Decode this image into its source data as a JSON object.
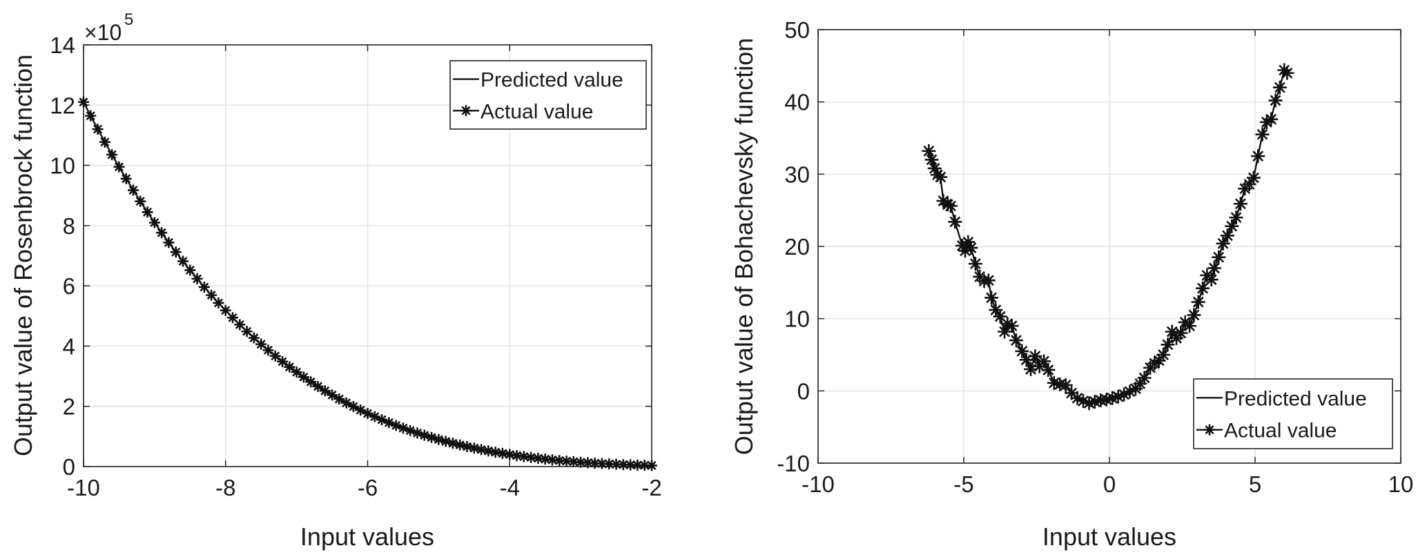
{
  "chart_data": [
    {
      "type": "line",
      "title": "",
      "xlabel": "Input values",
      "ylabel": "Output value of Rosenbrock function",
      "y_multiplier_label": {
        "base": "×10",
        "exponent": "5"
      },
      "xlim": [
        -10,
        -2
      ],
      "ylim": [
        0,
        14
      ],
      "y_units": "x 10^5",
      "xticks": [
        "-10",
        "-8",
        "-6",
        "-4",
        "-2"
      ],
      "yticks": [
        "0",
        "2",
        "4",
        "6",
        "8",
        "10",
        "12",
        "14"
      ],
      "grid": true,
      "legend": {
        "placement": "top-right",
        "entries": [
          "Predicted value",
          "Actual value"
        ]
      },
      "x_start": -10,
      "x_step": 0.1,
      "series": [
        {
          "name": "Predicted value",
          "style": "solid-line"
        },
        {
          "name": "Actual value",
          "style": "line-asterisk"
        }
      ],
      "y": [
        12.101,
        11.645,
        11.202,
        10.773,
        10.355,
        9.95,
        9.557,
        9.176,
        8.806,
        8.448,
        8.1,
        7.764,
        7.437,
        7.122,
        6.816,
        6.521,
        6.235,
        5.958,
        5.691,
        5.433,
        5.184,
        4.944,
        4.712,
        4.488,
        4.272,
        4.064,
        3.864,
        3.671,
        3.486,
        3.307,
        3.136,
        2.971,
        2.813,
        2.662,
        2.516,
        2.377,
        2.243,
        2.115,
        1.993,
        1.876,
        1.764,
        1.657,
        1.556,
        1.459,
        1.366,
        1.278,
        1.194,
        1.115,
        1.04,
        0.968,
        0.9,
        0.836,
        0.775,
        0.718,
        0.664,
        0.613,
        0.565,
        0.52,
        0.477,
        0.437,
        0.4,
        0.365,
        0.333,
        0.303,
        0.274,
        0.248,
        0.224,
        0.201,
        0.181,
        0.162,
        0.144,
        0.128,
        0.113,
        0.1,
        0.088,
        0.077,
        0.067,
        0.058,
        0.05,
        0.042,
        0.036
      ]
    },
    {
      "type": "line",
      "title": "",
      "xlabel": "Input values",
      "ylabel": "Output value of Bohachevsky function",
      "xlim": [
        -10,
        10
      ],
      "ylim": [
        -10,
        50
      ],
      "xticks": [
        "-10",
        "-5",
        "0",
        "5",
        "10"
      ],
      "yticks": [
        "-10",
        "0",
        "10",
        "20",
        "30",
        "40",
        "50"
      ],
      "grid": true,
      "legend": {
        "placement": "bottom-right",
        "entries": [
          "Predicted value",
          "Actual value"
        ]
      },
      "series": [
        {
          "name": "Predicted value",
          "style": "solid-line"
        },
        {
          "name": "Actual value",
          "style": "line-asterisk"
        }
      ],
      "x": [
        -6.2,
        -6.1,
        -6.0,
        -5.9,
        -5.8,
        -5.7,
        -5.55,
        -5.45,
        -5.3,
        -5.05,
        -4.95,
        -4.85,
        -4.75,
        -4.6,
        -4.45,
        -4.3,
        -4.15,
        -4.05,
        -3.9,
        -3.75,
        -3.6,
        -3.5,
        -3.35,
        -3.2,
        -3.0,
        -2.85,
        -2.7,
        -2.55,
        -2.4,
        -2.25,
        -2.1,
        -1.9,
        -1.7,
        -1.5,
        -1.3,
        -1.1,
        -0.9,
        -0.7,
        -0.5,
        -0.3,
        -0.1,
        0.1,
        0.3,
        0.5,
        0.7,
        0.9,
        1.05,
        1.2,
        1.4,
        1.55,
        1.7,
        1.85,
        2.0,
        2.15,
        2.3,
        2.45,
        2.6,
        2.75,
        2.9,
        3.05,
        3.2,
        3.35,
        3.5,
        3.6,
        3.75,
        3.9,
        4.05,
        4.2,
        4.35,
        4.5,
        4.65,
        4.8,
        4.95,
        5.1,
        5.25,
        5.4,
        5.55,
        5.7,
        5.85,
        6.0,
        6.1
      ],
      "y": [
        33.2,
        32.0,
        30.8,
        29.9,
        29.6,
        26.3,
        25.8,
        25.6,
        23.4,
        20.1,
        19.4,
        20.6,
        19.8,
        17.6,
        15.8,
        15.2,
        15.3,
        12.9,
        11.2,
        10.3,
        8.2,
        9.3,
        9.0,
        7.0,
        5.5,
        4.3,
        3.0,
        4.8,
        3.4,
        4.1,
        2.9,
        1.1,
        0.9,
        0.8,
        -0.3,
        -1.0,
        -1.4,
        -1.7,
        -1.5,
        -1.3,
        -1.2,
        -1.0,
        -0.8,
        -0.5,
        -0.1,
        0.3,
        1.0,
        1.8,
        3.2,
        3.8,
        4.2,
        5.0,
        6.4,
        8.2,
        7.3,
        8.0,
        9.5,
        9.0,
        10.5,
        12.3,
        14.2,
        16.0,
        15.4,
        17.0,
        18.5,
        20.4,
        21.5,
        22.8,
        24.0,
        25.9,
        28.0,
        28.6,
        29.5,
        32.5,
        35.5,
        37.2,
        37.6,
        40.2,
        42.0,
        44.4,
        44.0
      ]
    }
  ]
}
